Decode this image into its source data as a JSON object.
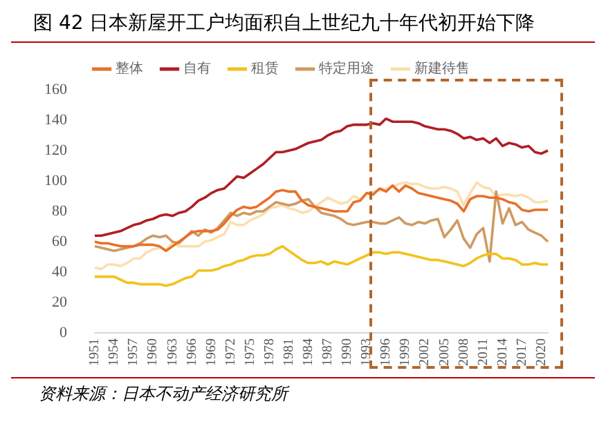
{
  "chart_data": {
    "type": "line",
    "title": "图  42 日本新屋开工户均面积自上世纪九十年代初开始下降",
    "annotations": [
      "资料来源：日本不动产经济研究所"
    ],
    "categories": [
      "1951",
      null,
      null,
      "1954",
      null,
      null,
      "1957",
      null,
      null,
      "1960",
      null,
      null,
      "1963",
      null,
      null,
      "1966",
      null,
      null,
      "1969",
      null,
      null,
      "1972",
      null,
      null,
      "1975",
      null,
      null,
      "1978",
      null,
      null,
      "1981",
      null,
      null,
      "1984",
      null,
      null,
      "1987",
      null,
      null,
      "1990",
      null,
      null,
      "1993",
      null,
      null,
      "1996",
      null,
      null,
      "1999",
      null,
      null,
      "2002",
      null,
      null,
      "2005",
      null,
      null,
      "2008",
      null,
      null,
      "2011",
      null,
      null,
      "2014",
      null,
      null,
      "2017",
      null,
      null,
      "2020",
      null
    ],
    "ylim": [
      0,
      160
    ],
    "yticks": [
      0,
      20,
      40,
      60,
      80,
      100,
      120,
      140,
      160
    ],
    "grid": false,
    "legend": "top",
    "marker": "none",
    "line_style": "solid",
    "series": [
      {
        "name": "整体",
        "color": "#e8702a",
        "values": [
          60,
          59,
          59,
          58,
          57,
          57,
          57,
          58,
          58,
          58,
          57,
          54,
          57,
          60,
          63,
          66,
          67,
          67,
          67,
          68,
          72,
          77,
          81,
          83,
          82,
          83,
          86,
          89,
          93,
          94,
          93,
          93,
          87,
          84,
          83,
          82,
          81,
          80,
          80,
          80,
          86,
          87,
          92,
          91,
          95,
          93,
          97,
          93,
          97,
          95,
          92,
          91,
          90,
          89,
          88,
          87,
          85,
          80,
          88,
          90,
          90,
          89,
          89,
          88,
          86,
          85,
          81,
          80,
          81,
          81,
          81
        ]
      },
      {
        "name": "自有",
        "color": "#b01e23",
        "values": [
          64,
          64,
          65,
          66,
          67,
          69,
          71,
          72,
          74,
          75,
          77,
          78,
          77,
          79,
          80,
          83,
          87,
          89,
          92,
          94,
          95,
          99,
          103,
          102,
          105,
          108,
          111,
          115,
          119,
          119,
          120,
          121,
          123,
          125,
          126,
          127,
          130,
          132,
          133,
          136,
          137,
          137,
          137,
          138,
          137,
          141,
          139,
          139,
          139,
          139,
          138,
          136,
          135,
          134,
          134,
          133,
          131,
          128,
          129,
          127,
          128,
          125,
          128,
          123,
          125,
          124,
          122,
          123,
          119,
          118,
          120
        ]
      },
      {
        "name": "租赁",
        "color": "#f2c21b",
        "values": [
          37,
          37,
          37,
          37,
          35,
          33,
          33,
          32,
          32,
          32,
          32,
          31,
          32,
          34,
          36,
          37,
          41,
          41,
          41,
          42,
          44,
          45,
          47,
          48,
          50,
          51,
          51,
          52,
          55,
          57,
          54,
          51,
          48,
          46,
          46,
          47,
          45,
          47,
          46,
          45,
          47,
          49,
          51,
          53,
          53,
          52,
          53,
          53,
          52,
          51,
          50,
          49,
          48,
          48,
          47,
          46,
          45,
          44,
          46,
          49,
          51,
          52,
          52,
          49,
          49,
          48,
          45,
          45,
          46,
          45,
          45
        ]
      },
      {
        "name": "特定用途",
        "color": "#cf9a62",
        "values": [
          57,
          56,
          55,
          54,
          55,
          56,
          57,
          59,
          62,
          64,
          63,
          64,
          60,
          59,
          63,
          67,
          64,
          68,
          66,
          69,
          74,
          79,
          77,
          79,
          78,
          80,
          80,
          83,
          86,
          85,
          84,
          85,
          87,
          88,
          83,
          79,
          78,
          77,
          75,
          72,
          71,
          72,
          73,
          73,
          72,
          72,
          74,
          76,
          72,
          71,
          73,
          72,
          74,
          75,
          63,
          68,
          74,
          62,
          56,
          65,
          69,
          47,
          93,
          72,
          82,
          71,
          73,
          68,
          66,
          64,
          60
        ]
      },
      {
        "name": "新建待售",
        "color": "#fbdfb0",
        "values": [
          43,
          42,
          45,
          45,
          44,
          46,
          49,
          49,
          53,
          55,
          56,
          55,
          59,
          57,
          57,
          57,
          57,
          60,
          61,
          63,
          65,
          73,
          71,
          71,
          74,
          76,
          78,
          82,
          83,
          84,
          82,
          81,
          79,
          80,
          83,
          86,
          89,
          87,
          85,
          86,
          90,
          88,
          92,
          93,
          94,
          95,
          96,
          98,
          99,
          98,
          98,
          96,
          95,
          95,
          96,
          95,
          93,
          84,
          92,
          99,
          96,
          95,
          90,
          91,
          91,
          90,
          91,
          89,
          86,
          86,
          87
        ]
      }
    ]
  }
}
